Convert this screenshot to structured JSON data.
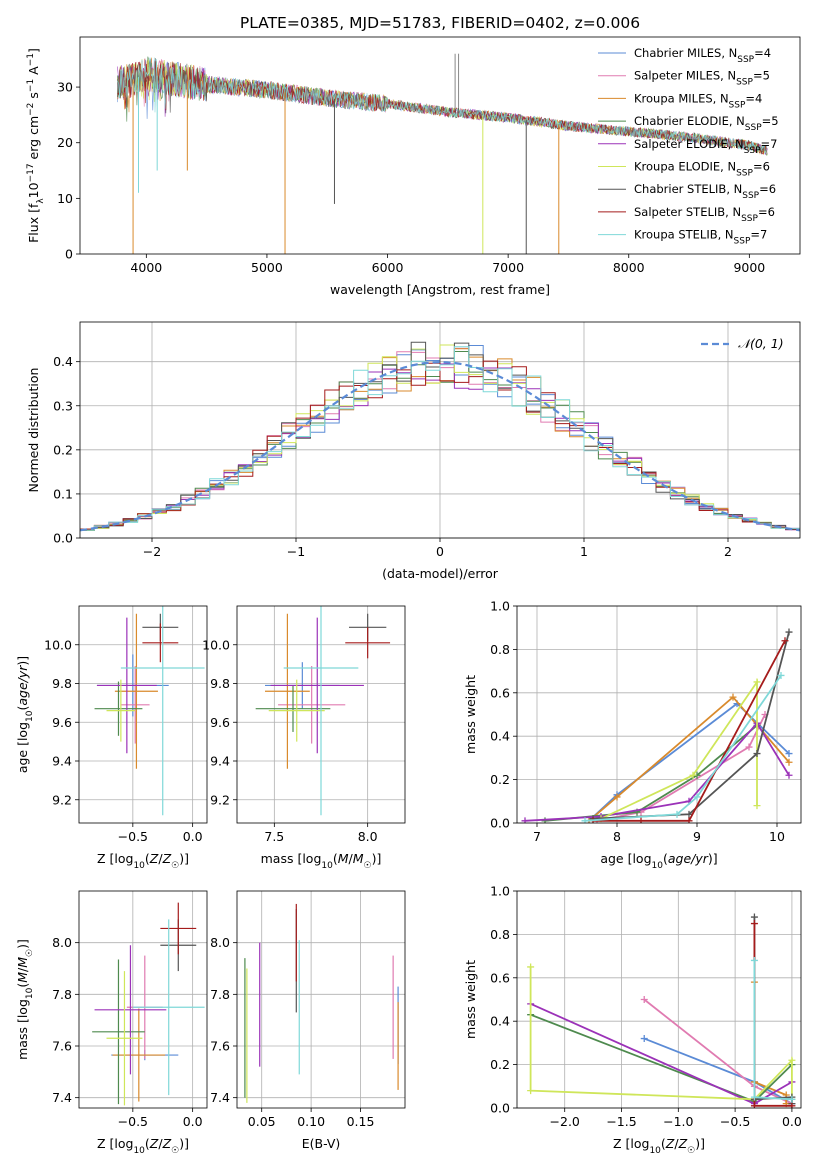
{
  "figure_title": "PLATE=0385, MJD=51783, FIBERID=0402, z=0.006",
  "colors": {
    "chabrier_miles": "#5b8bd6",
    "salpeter_miles": "#e07bb1",
    "kroupa_miles": "#d98a2c",
    "chabrier_elodie": "#4e8a4e",
    "salpeter_elodie": "#9b32b8",
    "kroupa_elodie": "#cfe65a",
    "chabrier_stelib": "#555555",
    "salpeter_stelib": "#a51c1c",
    "kroupa_stelib": "#7fd8d8"
  },
  "chart_data": [
    {
      "id": "spectrum",
      "type": "line",
      "xlabel": "wavelength [Angstrom, rest frame]",
      "ylabel": "Flux [f_λ10^-17 erg cm^-2 s^-1 A^-1]",
      "xlim": [
        3450,
        9420
      ],
      "ylim": [
        0,
        39
      ],
      "xticks": [
        4000,
        5000,
        6000,
        7000,
        8000,
        9000
      ],
      "yticks": [
        0,
        10,
        20,
        30
      ],
      "legend_position": "top-right",
      "series": [
        {
          "name": "Chabrier MILES, NSSP=4",
          "label_main": "Chabrier MILES, N",
          "label_sub": "SSP",
          "label_tail": "=4",
          "color_key": "chabrier_miles"
        },
        {
          "name": "Salpeter MILES, NSSP=5",
          "label_main": "Salpeter MILES, N",
          "label_sub": "SSP",
          "label_tail": "=5",
          "color_key": "salpeter_miles"
        },
        {
          "name": "Kroupa MILES, NSSP=4",
          "label_main": "Kroupa MILES, N",
          "label_sub": "SSP",
          "label_tail": "=4",
          "color_key": "kroupa_miles"
        },
        {
          "name": "Chabrier ELODIE, NSSP=5",
          "label_main": "Chabrier ELODIE, N",
          "label_sub": "SSP",
          "label_tail": "=5",
          "color_key": "chabrier_elodie"
        },
        {
          "name": "Salpeter ELODIE, NSSP=7",
          "label_main": "Salpeter ELODIE, N",
          "label_sub": "SSP",
          "label_tail": "=7",
          "color_key": "salpeter_elodie"
        },
        {
          "name": "Kroupa ELODIE, NSSP=6",
          "label_main": "Kroupa ELODIE, N",
          "label_sub": "SSP",
          "label_tail": "=6",
          "color_key": "kroupa_elodie"
        },
        {
          "name": "Chabrier STELIB, NSSP=6",
          "label_main": "Chabrier STELIB, N",
          "label_sub": "SSP",
          "label_tail": "=6",
          "color_key": "chabrier_stelib"
        },
        {
          "name": "Salpeter STELIB, NSSP=6",
          "label_main": "Salpeter STELIB, N",
          "label_sub": "SSP",
          "label_tail": "=6",
          "color_key": "salpeter_stelib"
        },
        {
          "name": "Kroupa STELIB, NSSP=7",
          "label_main": "Kroupa STELIB, N",
          "label_sub": "SSP",
          "label_tail": "=7",
          "color_key": "kroupa_stelib"
        }
      ],
      "continuum": {
        "x": [
          3760,
          3900,
          4000,
          4200,
          4500,
          5000,
          5500,
          6000,
          6500,
          7000,
          7500,
          8000,
          8500,
          9000,
          9150
        ],
        "y": [
          30.5,
          31.5,
          32.5,
          31.5,
          30.5,
          29.5,
          28.0,
          27.0,
          25.5,
          24.5,
          23.0,
          22.0,
          21.0,
          19.5,
          18.5
        ]
      },
      "dips": [
        {
          "x": 3890,
          "y": 0,
          "color_key": "kroupa_miles"
        },
        {
          "x": 3935,
          "y": 11,
          "color_key": "kroupa_stelib"
        },
        {
          "x": 4090,
          "y": 15,
          "color_key": "kroupa_stelib"
        },
        {
          "x": 4340,
          "y": 15,
          "color_key": "kroupa_miles"
        },
        {
          "x": 5150,
          "y": 0,
          "color_key": "kroupa_miles"
        },
        {
          "x": 5560,
          "y": 9,
          "color_key": "chabrier_stelib"
        },
        {
          "x": 6790,
          "y": 0,
          "color_key": "kroupa_elodie"
        },
        {
          "x": 7150,
          "y": 0,
          "color_key": "chabrier_stelib"
        },
        {
          "x": 7420,
          "y": 0,
          "color_key": "kroupa_miles"
        }
      ],
      "spikes": [
        {
          "x": 6560,
          "y": 36,
          "color_key": "chabrier_stelib"
        },
        {
          "x": 6590,
          "y": 36,
          "color_key": "chabrier_stelib"
        }
      ]
    },
    {
      "id": "residual_distribution",
      "type": "histogram",
      "xlabel": "(data-model)/error",
      "ylabel": "Normed distribution",
      "xlim": [
        -2.5,
        2.5
      ],
      "ylim": [
        0,
        0.49
      ],
      "xticks": [
        -2,
        -1,
        0,
        1,
        2
      ],
      "yticks": [
        0.0,
        0.1,
        0.2,
        0.3,
        0.4
      ],
      "bin_width": 0.1,
      "grid": true,
      "legend_position": "top-right",
      "reference_curve": {
        "name": "N(0,1)",
        "label": "𝒩(0, 1)",
        "mean": 0,
        "sigma": 1,
        "color": "#5b8bd6"
      }
    },
    {
      "id": "age_vs_Z",
      "type": "errorbar",
      "xlabel": "Z [log10(Z/Z☉)]",
      "ylabel": "age [log10(age/yr)]",
      "xlim": [
        -0.95,
        0.12
      ],
      "ylim": [
        9.08,
        10.2
      ],
      "xticks": [
        -0.5,
        0.0
      ],
      "yticks": [
        9.2,
        9.4,
        9.6,
        9.8,
        10.0
      ],
      "grid": true,
      "points": [
        {
          "color_key": "chabrier_miles",
          "x": -0.5,
          "xerr": 0.3,
          "y": 9.79,
          "yerr": 0.16
        },
        {
          "color_key": "salpeter_miles",
          "x": -0.48,
          "xerr": 0.12,
          "y": 9.69,
          "yerr": 0.2
        },
        {
          "color_key": "kroupa_miles",
          "x": -0.47,
          "xerr": 0.18,
          "y": 9.76,
          "yerr": 0.4
        },
        {
          "color_key": "chabrier_elodie",
          "x": -0.62,
          "xerr": 0.2,
          "y": 9.67,
          "yerr": 0.14
        },
        {
          "color_key": "salpeter_elodie",
          "x": -0.55,
          "xerr": 0.25,
          "y": 9.79,
          "yerr": 0.35
        },
        {
          "color_key": "kroupa_elodie",
          "x": -0.6,
          "xerr": 0.12,
          "y": 9.66,
          "yerr": 0.16
        },
        {
          "color_key": "chabrier_stelib",
          "x": -0.27,
          "xerr": 0.15,
          "y": 10.09,
          "yerr": 0.07
        },
        {
          "color_key": "salpeter_stelib",
          "x": -0.27,
          "xerr": 0.15,
          "y": 10.01,
          "yerr": 0.1
        },
        {
          "color_key": "kroupa_stelib",
          "x": -0.25,
          "xerr": 0.35,
          "y": 9.88,
          "yerr": 0.76
        }
      ]
    },
    {
      "id": "age_vs_mass",
      "type": "errorbar",
      "xlabel": "mass [log10(M/M☉)]",
      "ylabel": "",
      "xlim": [
        7.3,
        8.2
      ],
      "ylim": [
        9.08,
        10.2
      ],
      "xticks": [
        7.5,
        8.0
      ],
      "yticks": [
        9.2,
        9.4,
        9.6,
        9.8,
        10.0
      ],
      "grid": true,
      "points": [
        {
          "color_key": "chabrier_miles",
          "x": 7.65,
          "xerr": 0.2,
          "y": 9.79,
          "yerr": 0.12
        },
        {
          "color_key": "salpeter_miles",
          "x": 7.7,
          "xerr": 0.18,
          "y": 9.69,
          "yerr": 0.2
        },
        {
          "color_key": "kroupa_miles",
          "x": 7.57,
          "xerr": 0.12,
          "y": 9.76,
          "yerr": 0.4
        },
        {
          "color_key": "chabrier_elodie",
          "x": 7.6,
          "xerr": 0.2,
          "y": 9.67,
          "yerr": 0.12
        },
        {
          "color_key": "salpeter_elodie",
          "x": 7.73,
          "xerr": 0.25,
          "y": 9.79,
          "yerr": 0.35
        },
        {
          "color_key": "kroupa_elodie",
          "x": 7.62,
          "xerr": 0.15,
          "y": 9.66,
          "yerr": 0.16
        },
        {
          "color_key": "chabrier_stelib",
          "x": 8.0,
          "xerr": 0.1,
          "y": 10.09,
          "yerr": 0.07
        },
        {
          "color_key": "salpeter_stelib",
          "x": 8.0,
          "xerr": 0.12,
          "y": 10.01,
          "yerr": 0.08
        },
        {
          "color_key": "kroupa_stelib",
          "x": 7.75,
          "xerr": 0.2,
          "y": 9.88,
          "yerr": 0.76
        }
      ]
    },
    {
      "id": "mass_weight_vs_age",
      "type": "line",
      "xlabel": "age [log10(age/yr)]",
      "ylabel": "mass weight",
      "xlim": [
        6.75,
        10.3
      ],
      "ylim": [
        0,
        1.0
      ],
      "xticks": [
        7,
        8,
        9,
        10
      ],
      "yticks": [
        0.0,
        0.2,
        0.4,
        0.6,
        0.8,
        1.0
      ],
      "grid": true,
      "series": [
        {
          "color_key": "chabrier_miles",
          "x": [
            7.65,
            8.0,
            9.5,
            10.15
          ],
          "y": [
            0.01,
            0.13,
            0.55,
            0.32
          ]
        },
        {
          "color_key": "kroupa_miles",
          "x": [
            7.65,
            8.0,
            9.45,
            10.15
          ],
          "y": [
            0.01,
            0.12,
            0.58,
            0.28
          ]
        },
        {
          "color_key": "salpeter_miles",
          "x": [
            7.75,
            8.3,
            9.65,
            9.85
          ],
          "y": [
            0.01,
            0.05,
            0.35,
            0.5
          ]
        },
        {
          "color_key": "chabrier_elodie",
          "x": [
            7.1,
            8.25,
            9.0,
            9.75
          ],
          "y": [
            0.01,
            0.05,
            0.22,
            0.45
          ]
        },
        {
          "color_key": "salpeter_elodie",
          "x": [
            6.85,
            7.8,
            8.9,
            9.75,
            10.15
          ],
          "y": [
            0.01,
            0.03,
            0.1,
            0.46,
            0.22
          ]
        },
        {
          "color_key": "kroupa_elodie",
          "x": [
            7.8,
            8.95,
            9.75,
            9.75
          ],
          "y": [
            0.02,
            0.22,
            0.65,
            0.08
          ]
        },
        {
          "color_key": "chabrier_stelib",
          "x": [
            7.7,
            8.9,
            9.75,
            10.15
          ],
          "y": [
            0.02,
            0.04,
            0.32,
            0.88
          ]
        },
        {
          "color_key": "salpeter_stelib",
          "x": [
            7.7,
            8.3,
            8.9,
            10.1
          ],
          "y": [
            0.01,
            0.01,
            0.01,
            0.84
          ]
        },
        {
          "color_key": "kroupa_stelib",
          "x": [
            7.6,
            8.75,
            9.0,
            10.05
          ],
          "y": [
            0.01,
            0.04,
            0.12,
            0.68
          ]
        }
      ]
    },
    {
      "id": "mass_vs_Z",
      "type": "errorbar",
      "xlabel": "Z [log10(Z/Z☉)]",
      "ylabel": "mass [log10(M/M☉)]",
      "xlim": [
        -0.95,
        0.12
      ],
      "ylim": [
        7.36,
        8.2
      ],
      "xticks": [
        -0.5,
        0.0
      ],
      "yticks": [
        7.4,
        7.6,
        7.8,
        8.0
      ],
      "grid": true,
      "points": [
        {
          "color_key": "chabrier_miles",
          "x": -0.4,
          "xerr": 0.28,
          "y": 7.565,
          "yerr": 0.02
        },
        {
          "color_key": "salpeter_miles",
          "x": -0.4,
          "xerr": 0.15,
          "y": 7.75,
          "yerr": 0.2
        },
        {
          "color_key": "kroupa_miles",
          "x": -0.45,
          "xerr": 0.22,
          "y": 7.565,
          "yerr": 0.18
        },
        {
          "color_key": "chabrier_elodie",
          "x": -0.62,
          "xerr": 0.22,
          "y": 7.655,
          "yerr": 0.28
        },
        {
          "color_key": "salpeter_elodie",
          "x": -0.52,
          "xerr": 0.3,
          "y": 7.74,
          "yerr": 0.25
        },
        {
          "color_key": "kroupa_elodie",
          "x": -0.57,
          "xerr": 0.15,
          "y": 7.63,
          "yerr": 0.26
        },
        {
          "color_key": "chabrier_stelib",
          "x": -0.12,
          "xerr": 0.15,
          "y": 7.99,
          "yerr": 0.1
        },
        {
          "color_key": "salpeter_stelib",
          "x": -0.12,
          "xerr": 0.15,
          "y": 8.055,
          "yerr": 0.1
        },
        {
          "color_key": "kroupa_stelib",
          "x": -0.2,
          "xerr": 0.3,
          "y": 7.75,
          "yerr": 0.34
        }
      ]
    },
    {
      "id": "mass_vs_EBV",
      "type": "errorbar",
      "xlabel": "E(B-V)",
      "ylabel": "",
      "xlim": [
        0.025,
        0.195
      ],
      "ylim": [
        7.36,
        8.2
      ],
      "xticks": [
        0.05,
        0.1,
        0.15
      ],
      "yticks": [
        7.4,
        7.6,
        7.8,
        8.0
      ],
      "grid": true,
      "points": [
        {
          "color_key": "chabrier_miles",
          "x": 0.188,
          "xerr": 0.0,
          "y": 7.68,
          "yerr": 0.15
        },
        {
          "color_key": "salpeter_miles",
          "x": 0.183,
          "xerr": 0.0,
          "y": 7.75,
          "yerr": 0.2
        },
        {
          "color_key": "kroupa_miles",
          "x": 0.188,
          "xerr": 0.0,
          "y": 7.6,
          "yerr": 0.17
        },
        {
          "color_key": "chabrier_elodie",
          "x": 0.033,
          "xerr": 0.0,
          "y": 7.67,
          "yerr": 0.27
        },
        {
          "color_key": "salpeter_elodie",
          "x": 0.048,
          "xerr": 0.0,
          "y": 7.76,
          "yerr": 0.24
        },
        {
          "color_key": "kroupa_elodie",
          "x": 0.035,
          "xerr": 0.0,
          "y": 7.64,
          "yerr": 0.26
        },
        {
          "color_key": "chabrier_stelib",
          "x": 0.085,
          "xerr": 0.0,
          "y": 7.93,
          "yerr": 0.2
        },
        {
          "color_key": "salpeter_stelib",
          "x": 0.085,
          "xerr": 0.0,
          "y": 8.0,
          "yerr": 0.15
        },
        {
          "color_key": "kroupa_stelib",
          "x": 0.088,
          "xerr": 0.0,
          "y": 7.75,
          "yerr": 0.26
        }
      ]
    },
    {
      "id": "mass_weight_vs_Z",
      "type": "line",
      "xlabel": "Z [log10(Z/Z☉)]",
      "ylabel": "mass weight",
      "xlim": [
        -2.42,
        0.08
      ],
      "ylim": [
        0,
        1.0
      ],
      "xticks": [
        -2.0,
        -1.5,
        -1.0,
        -0.5,
        0.0
      ],
      "yticks": [
        0.0,
        0.2,
        0.4,
        0.6,
        0.8,
        1.0
      ],
      "grid": true,
      "series": [
        {
          "color_key": "chabrier_miles",
          "x": [
            -1.3,
            -0.33,
            0.0
          ],
          "y": [
            0.32,
            0.12,
            0.02
          ]
        },
        {
          "color_key": "salpeter_miles",
          "x": [
            -1.3,
            -0.33,
            0.0
          ],
          "y": [
            0.5,
            0.1,
            0.02
          ]
        },
        {
          "color_key": "kroupa_miles",
          "x": [
            -0.33,
            -0.33,
            -0.05,
            -0.05
          ],
          "y": [
            0.58,
            0.12,
            0.06,
            0.02
          ]
        },
        {
          "color_key": "chabrier_elodie",
          "x": [
            -2.3,
            -0.33,
            0.0
          ],
          "y": [
            0.43,
            0.03,
            0.2
          ]
        },
        {
          "color_key": "salpeter_elodie",
          "x": [
            -2.3,
            -0.33,
            0.0
          ],
          "y": [
            0.48,
            0.02,
            0.12
          ]
        },
        {
          "color_key": "kroupa_elodie",
          "x": [
            -2.3,
            -2.3,
            -0.33,
            0.0,
            0.0
          ],
          "y": [
            0.65,
            0.08,
            0.04,
            0.22,
            0.04
          ]
        },
        {
          "color_key": "chabrier_stelib",
          "x": [
            -0.33,
            -0.33,
            0.0,
            0.0
          ],
          "y": [
            0.88,
            0.04,
            0.05,
            0.02
          ]
        },
        {
          "color_key": "salpeter_stelib",
          "x": [
            -0.33,
            -0.33,
            0.0
          ],
          "y": [
            0.85,
            0.01,
            0.01
          ]
        },
        {
          "color_key": "kroupa_stelib",
          "x": [
            -0.33,
            -0.33,
            0.0
          ],
          "y": [
            0.68,
            0.05,
            0.04
          ]
        }
      ]
    }
  ]
}
